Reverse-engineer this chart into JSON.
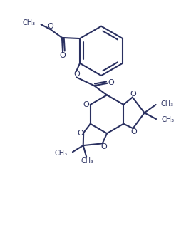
{
  "bg": "#ffffff",
  "lc": "#2a3060",
  "lw": 1.5,
  "figw": 2.75,
  "figh": 3.48,
  "dpi": 100,
  "xlim": [
    -1,
    11
  ],
  "ylim": [
    -1,
    13
  ]
}
